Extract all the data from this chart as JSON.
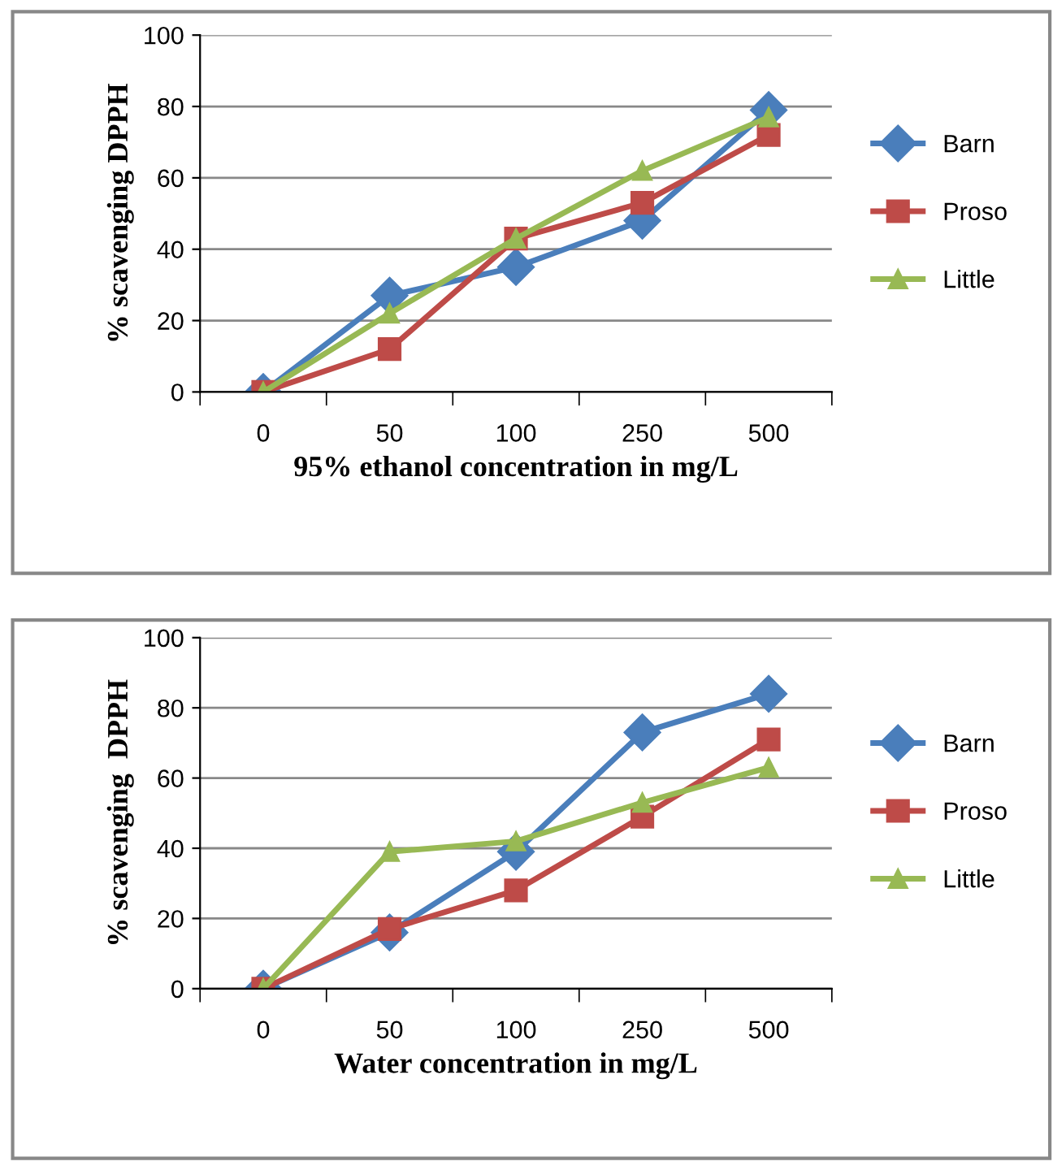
{
  "chart_data": [
    {
      "type": "line",
      "xlabel": "95% ethanol concentration in mg/L",
      "ylabel": "% scavenging DPPH",
      "categories": [
        "0",
        "50",
        "100",
        "250",
        "500"
      ],
      "series": [
        {
          "name": "Barn",
          "color": "#4a7ebb",
          "marker": "diamond",
          "values": [
            0,
            27,
            35,
            48,
            79
          ]
        },
        {
          "name": "Proso",
          "color": "#be4b48",
          "marker": "square",
          "values": [
            0,
            12,
            43,
            53,
            72
          ]
        },
        {
          "name": "Little",
          "color": "#98b954",
          "marker": "triangle",
          "values": [
            0,
            22,
            43,
            62,
            77
          ]
        }
      ],
      "ylim": [
        0,
        100
      ],
      "yticks": [
        0,
        20,
        40,
        60,
        80,
        100
      ],
      "grid": "y",
      "legend": "right"
    },
    {
      "type": "line",
      "xlabel": "Water concentration in mg/L",
      "ylabel": "% scavenging  DPPH",
      "categories": [
        "0",
        "50",
        "100",
        "250",
        "500"
      ],
      "series": [
        {
          "name": "Barn",
          "color": "#4a7ebb",
          "marker": "diamond",
          "values": [
            0,
            16,
            39,
            73,
            84
          ]
        },
        {
          "name": "Proso",
          "color": "#be4b48",
          "marker": "square",
          "values": [
            0,
            17,
            28,
            49,
            71
          ]
        },
        {
          "name": "Little",
          "color": "#98b954",
          "marker": "triangle",
          "values": [
            0,
            39,
            42,
            53,
            63
          ]
        }
      ],
      "ylim": [
        0,
        100
      ],
      "yticks": [
        0,
        20,
        40,
        60,
        80,
        100
      ],
      "grid": "y",
      "legend": "right"
    }
  ]
}
